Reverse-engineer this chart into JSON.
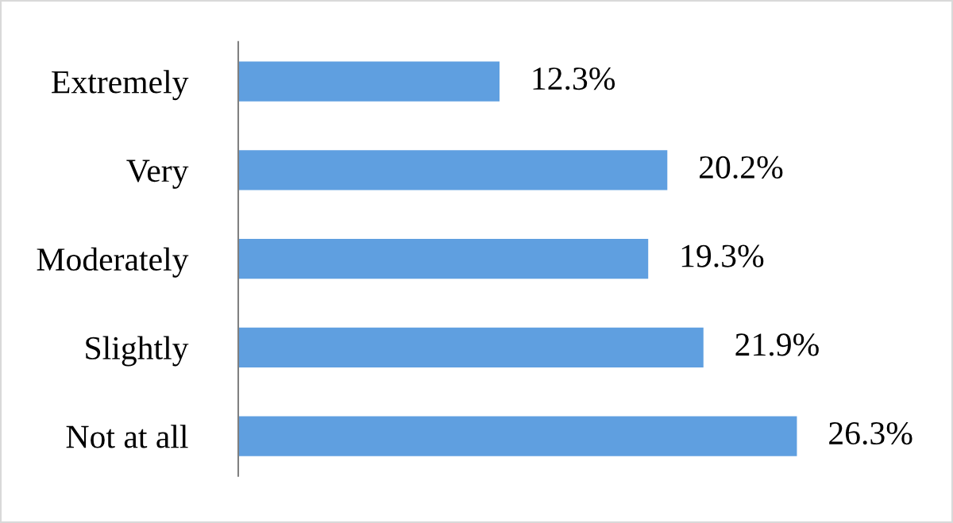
{
  "chart_data": {
    "type": "bar",
    "orientation": "horizontal",
    "categories": [
      "Extremely",
      "Very",
      "Moderately",
      "Slightly",
      "Not at all"
    ],
    "values": [
      12.3,
      20.2,
      19.3,
      21.9,
      26.3
    ],
    "value_labels": [
      "12.3%",
      "20.2%",
      "19.3%",
      "21.9%",
      "26.3%"
    ],
    "color": "#5f9fe0",
    "grid": false,
    "legend": false
  }
}
